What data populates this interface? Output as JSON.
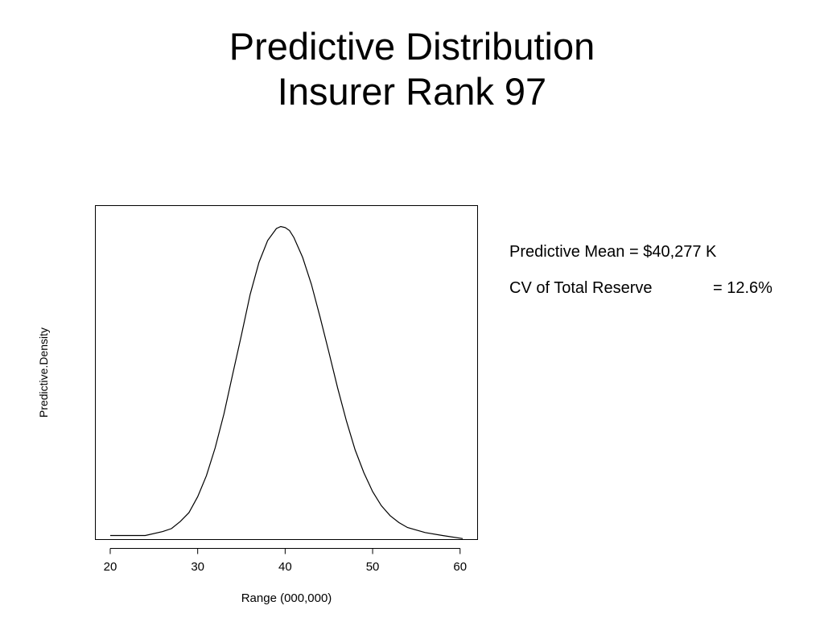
{
  "slide": {
    "title_line1": "Predictive Distribution",
    "title_line2": "Insurer Rank 97"
  },
  "stats": {
    "mean_label": "Predictive Mean = ",
    "mean_value": "$40,277 K",
    "cv_label": "CV of Total Reserve",
    "cv_value": "= 12.6%"
  },
  "chart_data": {
    "type": "line",
    "title": "",
    "xlabel": "Range (000,000)",
    "ylabel": "Predictive.Density",
    "xlim": [
      18.3,
      62
    ],
    "ylim": [
      0,
      0.0335
    ],
    "xticks": [
      20,
      30,
      40,
      50,
      60
    ],
    "xticklabels": [
      "20",
      "30",
      "40",
      "50",
      "60"
    ],
    "show_yticks": false,
    "grid": false,
    "frame": "box",
    "line_color": "#000000",
    "series": [
      {
        "x": [
          20,
          22,
          24,
          26,
          27,
          28,
          29,
          30,
          31,
          32,
          33,
          34,
          35,
          36,
          37,
          38,
          39,
          39.5,
          40,
          40.5,
          41,
          42,
          43,
          44,
          45,
          46,
          47,
          48,
          49,
          50,
          51,
          52,
          53,
          54,
          56,
          58,
          60.3
        ],
        "y": [
          0.0004,
          0.0004,
          0.0004,
          0.0008,
          0.0011,
          0.0018,
          0.0027,
          0.0043,
          0.0064,
          0.0092,
          0.0126,
          0.0166,
          0.0205,
          0.0246,
          0.0278,
          0.03,
          0.0312,
          0.0314,
          0.0313,
          0.031,
          0.0303,
          0.0283,
          0.0256,
          0.0223,
          0.0188,
          0.0152,
          0.0119,
          0.009,
          0.0067,
          0.0048,
          0.0034,
          0.0024,
          0.0017,
          0.0012,
          0.0007,
          0.0004,
          0.0001
        ]
      }
    ]
  }
}
